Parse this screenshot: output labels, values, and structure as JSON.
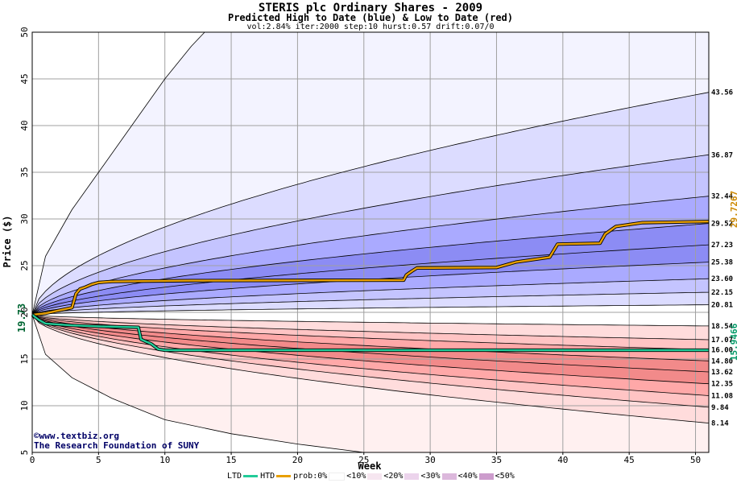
{
  "header": {
    "title": "STERIS plc Ordinary Shares - 2009",
    "subtitle": "Predicted High to Date (blue) &  Low to Date (red)",
    "params": "vol:2.84% iter:2000 step:10 hurst:0.57 drift:0.07/0"
  },
  "credits": {
    "line1": "©www.textbiz.org",
    "line2": "The Research Foundation of SUNY"
  },
  "legend": {
    "ltd": "LTD",
    "htd": "HTD",
    "prob": "prob:0%",
    "b10": "<10%",
    "b20": "<20%",
    "b30": "<30%",
    "b40": "<40%",
    "b50": "<50%"
  },
  "colors": {
    "ltd_line": "#22cc99",
    "htd_line": "#e8a000",
    "blue_bands": [
      "#f3f3ff",
      "#dcdcff",
      "#c4c4ff",
      "#aaaaff",
      "#8c8cf4"
    ],
    "red_bands": [
      "#fff0f0",
      "#ffdcdc",
      "#ffc4c4",
      "#ffa8a8",
      "#f28a8a"
    ],
    "legend_prob": [
      "#ffffff",
      "#fdf0f0",
      "#f0d8f0",
      "#e6c0e0",
      "#d8a0c8",
      "#c890c0"
    ]
  },
  "chart_data": {
    "type": "line",
    "title": "STERIS plc Ordinary Shares - 2009",
    "xlabel": "Week",
    "ylabel": "Price ($)",
    "xlim": [
      0,
      51
    ],
    "ylim": [
      5,
      50
    ],
    "x_ticks": [
      0,
      5,
      10,
      15,
      20,
      25,
      30,
      35,
      40,
      45,
      50
    ],
    "y_ticks": [
      5,
      10,
      15,
      20,
      25,
      30,
      35,
      40,
      45,
      50
    ],
    "grid": true,
    "start_price": "19.73",
    "current_high_label": "29.7267",
    "current_low_label": "15.9466",
    "right_labels": [
      "43.56",
      "36.87",
      "32.44",
      "29.52",
      "27.23",
      "25.38",
      "23.60",
      "22.15",
      "20.81",
      "18.54",
      "17.07",
      "16.00",
      "14.80",
      "13.62",
      "12.35",
      "11.08",
      "9.84",
      "8.14"
    ],
    "upper_envelopes": [
      43.56,
      36.87,
      32.44,
      29.52,
      27.23,
      25.38,
      23.6,
      22.15,
      20.81
    ],
    "lower_envelopes": [
      18.54,
      17.07,
      16.0,
      14.8,
      13.62,
      12.35,
      11.08,
      9.84,
      8.14
    ],
    "outer_upper_curve": {
      "x": [
        0,
        1,
        3,
        5,
        8,
        10,
        12,
        13
      ],
      "y": [
        19.73,
        26,
        31,
        35,
        41,
        45,
        48.5,
        50
      ]
    },
    "outer_lower_curve": {
      "x": [
        0,
        1,
        3,
        6,
        10,
        15,
        20,
        25
      ],
      "y": [
        19.73,
        15.5,
        13,
        10.8,
        8.5,
        7,
        5.9,
        5
      ]
    },
    "series": [
      {
        "name": "HTD",
        "x": [
          0,
          1,
          2,
          3,
          3.3,
          3.6,
          4,
          4.5,
          5,
          6,
          9,
          12,
          28,
          28.2,
          28.6,
          29,
          35,
          35.5,
          36.5,
          39,
          39.6,
          42.8,
          43.2,
          44,
          46,
          51
        ],
        "y": [
          19.73,
          19.9,
          20.2,
          20.5,
          22.0,
          22.5,
          22.7,
          23.0,
          23.2,
          23.3,
          23.35,
          23.4,
          23.45,
          24.0,
          24.4,
          24.75,
          24.8,
          25.0,
          25.4,
          25.9,
          27.3,
          27.4,
          28.4,
          29.2,
          29.6,
          29.7267
        ]
      },
      {
        "name": "LTD",
        "x": [
          0,
          0.5,
          1,
          2,
          3,
          5,
          8,
          8.2,
          9,
          9.5,
          10,
          20,
          30,
          40,
          51
        ],
        "y": [
          19.73,
          19.2,
          18.8,
          18.7,
          18.6,
          18.5,
          18.4,
          17.1,
          16.6,
          16.05,
          15.95,
          15.95,
          15.95,
          15.95,
          15.9466
        ]
      }
    ]
  }
}
